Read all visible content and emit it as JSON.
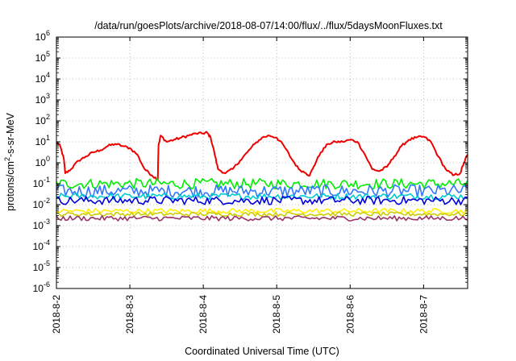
{
  "chart_data": {
    "type": "line",
    "title": "/data/run/goesPlots/archive/2018-08-07/14:00/flux/../flux/5daysMoonFluxes.txt",
    "xlabel": "Coordinated Universal Time (UTC)",
    "ylabel_parts": [
      "protons/cm",
      "2",
      "-s-sr-MeV"
    ],
    "y_scale": "log",
    "ylim": [
      1e-06,
      1000000
    ],
    "y_ticks": [
      {
        "base": "10",
        "exp": "-6",
        "value": -6
      },
      {
        "base": "10",
        "exp": "-5",
        "value": -5
      },
      {
        "base": "10",
        "exp": "-4",
        "value": -4
      },
      {
        "base": "10",
        "exp": "-3",
        "value": -3
      },
      {
        "base": "10",
        "exp": "-2",
        "value": -2
      },
      {
        "base": "10",
        "exp": "-1",
        "value": -1
      },
      {
        "base": "10",
        "exp": "0",
        "value": 0
      },
      {
        "base": "10",
        "exp": "1",
        "value": 1
      },
      {
        "base": "10",
        "exp": "2",
        "value": 2
      },
      {
        "base": "10",
        "exp": "3",
        "value": 3
      },
      {
        "base": "10",
        "exp": "4",
        "value": 4
      },
      {
        "base": "10",
        "exp": "5",
        "value": 5
      },
      {
        "base": "10",
        "exp": "6",
        "value": 6
      }
    ],
    "x_unit": "days",
    "xlim": [
      0,
      5.6
    ],
    "x_ticks": [
      {
        "label": "2018-8-2",
        "value": 0
      },
      {
        "label": "2018-8-3",
        "value": 1
      },
      {
        "label": "2018-8-4",
        "value": 2
      },
      {
        "label": "2018-8-5",
        "value": 3
      },
      {
        "label": "2018-8-6",
        "value": 4
      },
      {
        "label": "2018-8-7",
        "value": 5
      }
    ],
    "grid": true,
    "series": [
      {
        "color": "#ee0000",
        "points": [
          [
            0,
            1.0
          ],
          [
            0.05,
            0.8
          ],
          [
            0.1,
            0.2
          ],
          [
            0.12,
            -0.5
          ],
          [
            0.2,
            -0.3
          ],
          [
            0.3,
            0.1
          ],
          [
            0.4,
            0.3
          ],
          [
            0.5,
            0.5
          ],
          [
            0.6,
            0.6
          ],
          [
            0.7,
            0.8
          ],
          [
            0.8,
            0.9
          ],
          [
            0.9,
            0.8
          ],
          [
            1.0,
            0.7
          ],
          [
            1.1,
            0.4
          ],
          [
            1.2,
            -0.3
          ],
          [
            1.3,
            -0.6
          ],
          [
            1.38,
            -0.8
          ],
          [
            1.39,
            0.8
          ],
          [
            1.42,
            1.3
          ],
          [
            1.5,
            1.0
          ],
          [
            1.6,
            1.1
          ],
          [
            1.7,
            1.2
          ],
          [
            1.8,
            1.3
          ],
          [
            1.9,
            1.4
          ],
          [
            2.0,
            1.4
          ],
          [
            2.05,
            1.45
          ],
          [
            2.1,
            1.2
          ],
          [
            2.15,
            0.5
          ],
          [
            2.2,
            -0.3
          ],
          [
            2.3,
            -0.5
          ],
          [
            2.4,
            -0.3
          ],
          [
            2.5,
            0.1
          ],
          [
            2.6,
            0.5
          ],
          [
            2.7,
            0.9
          ],
          [
            2.8,
            1.2
          ],
          [
            2.9,
            1.3
          ],
          [
            3.0,
            1.2
          ],
          [
            3.1,
            0.8
          ],
          [
            3.2,
            0.2
          ],
          [
            3.3,
            -0.3
          ],
          [
            3.4,
            -0.5
          ],
          [
            3.45,
            -0.6
          ],
          [
            3.5,
            -0.2
          ],
          [
            3.6,
            0.5
          ],
          [
            3.7,
            0.9
          ],
          [
            3.8,
            1.0
          ],
          [
            3.9,
            1.0
          ],
          [
            4.0,
            1.1
          ],
          [
            4.1,
            1.0
          ],
          [
            4.2,
            0.4
          ],
          [
            4.3,
            -0.3
          ],
          [
            4.4,
            -0.4
          ],
          [
            4.5,
            -0.2
          ],
          [
            4.6,
            0.3
          ],
          [
            4.7,
            0.8
          ],
          [
            4.8,
            1.1
          ],
          [
            4.9,
            1.2
          ],
          [
            5.0,
            1.25
          ],
          [
            5.1,
            1.0
          ],
          [
            5.2,
            0.3
          ],
          [
            5.3,
            -0.3
          ],
          [
            5.4,
            -0.6
          ],
          [
            5.5,
            -0.5
          ],
          [
            5.55,
            0
          ],
          [
            5.6,
            0.4
          ]
        ]
      },
      {
        "color": "#00ee00",
        "base": -1.0,
        "amp": 0.25
      },
      {
        "color": "#3377ff",
        "base": -1.35,
        "amp": 0.3
      },
      {
        "color": "#00cccc",
        "base": -1.6,
        "amp": 0.15
      },
      {
        "color": "#0000dd",
        "base": -1.8,
        "amp": 0.2
      },
      {
        "color": "#ffee00",
        "base": -2.3,
        "amp": 0.12
      },
      {
        "color": "#cccc00",
        "base": -2.45,
        "amp": 0.1
      },
      {
        "color": "#993366",
        "base": -2.65,
        "amp": 0.12
      }
    ]
  }
}
